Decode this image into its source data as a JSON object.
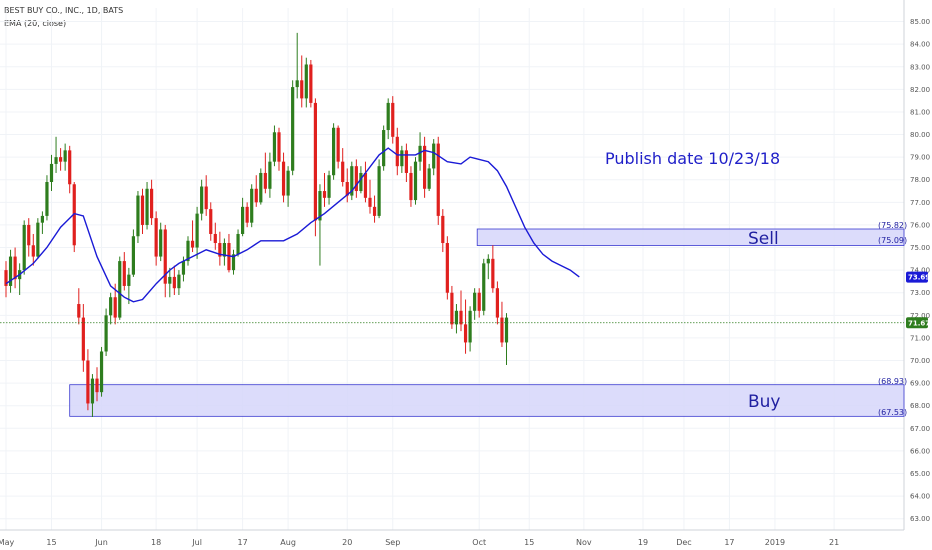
{
  "legend": {
    "symbol": "BEST BUY CO., INC., 1D, BATS",
    "indicator": "EMA (20, close)"
  },
  "annotations": {
    "publish": "Publish date 10/23/18",
    "sell": {
      "label": "Sell",
      "top": "(75.82)",
      "bottom": "(75.09)"
    },
    "buy": {
      "label": "Buy",
      "top": "(68.93)",
      "bottom": "(67.53)"
    },
    "ema_last": "73.69",
    "last_price": "71.67"
  },
  "colors": {
    "up": "#2e7d1e",
    "down": "#e0201e",
    "ema": "#1a1ad6",
    "zone_fill": "#d6d6fa",
    "zone_stroke": "#3a3ad0",
    "last_line": "#2e7d1e",
    "ema_badge": "#1a1ad6",
    "price_badge": "#2e7d1e"
  },
  "chart_data": {
    "type": "candlestick",
    "title": "BEST BUY CO., INC., 1D, BATS",
    "ylim": [
      62.5,
      85.6
    ],
    "y_ticks": [
      "63.00",
      "64.00",
      "65.00",
      "66.00",
      "67.00",
      "68.00",
      "69.00",
      "70.00",
      "71.00",
      "72.00",
      "73.00",
      "74.00",
      "75.00",
      "76.00",
      "77.00",
      "78.00",
      "79.00",
      "80.00",
      "81.00",
      "82.00",
      "83.00",
      "84.00",
      "85.00"
    ],
    "x_ticks": [
      {
        "label": "May",
        "i": 0
      },
      {
        "label": "15",
        "i": 10
      },
      {
        "label": "Jun",
        "i": 21
      },
      {
        "label": "18",
        "i": 33
      },
      {
        "label": "Jul",
        "i": 42
      },
      {
        "label": "17",
        "i": 52
      },
      {
        "label": "Aug",
        "i": 62
      },
      {
        "label": "20",
        "i": 75
      },
      {
        "label": "Sep",
        "i": 85
      },
      {
        "label": "Oct",
        "i": 104
      },
      {
        "label": "15",
        "i": 115
      },
      {
        "label": "Nov",
        "i": 127
      },
      {
        "label": "19",
        "i": 140
      },
      {
        "label": "Dec",
        "i": 149
      },
      {
        "label": "17",
        "i": 159
      },
      {
        "label": "2019",
        "i": 169
      },
      {
        "label": "21",
        "i": 182
      }
    ],
    "n_slots": 189,
    "candles": [
      [
        74.0,
        74.4,
        72.8,
        73.3
      ],
      [
        73.3,
        74.9,
        73.0,
        74.6
      ],
      [
        74.6,
        75.0,
        73.2,
        73.6
      ],
      [
        73.6,
        74.3,
        72.9,
        74.0
      ],
      [
        74.0,
        76.2,
        73.8,
        76.0
      ],
      [
        76.0,
        76.3,
        74.6,
        75.1
      ],
      [
        75.1,
        75.6,
        74.2,
        74.6
      ],
      [
        74.6,
        76.3,
        74.5,
        76.1
      ],
      [
        76.1,
        76.6,
        75.6,
        76.4
      ],
      [
        76.4,
        78.2,
        76.2,
        77.9
      ],
      [
        77.9,
        79.1,
        77.5,
        78.7
      ],
      [
        78.7,
        79.9,
        78.3,
        79.0
      ],
      [
        79.0,
        79.4,
        78.4,
        78.8
      ],
      [
        78.8,
        79.6,
        78.4,
        79.3
      ],
      [
        79.3,
        79.5,
        77.4,
        77.8
      ],
      [
        77.8,
        77.9,
        74.8,
        75.1
      ],
      [
        72.5,
        73.2,
        71.6,
        71.9
      ],
      [
        71.9,
        72.5,
        69.5,
        70.0
      ],
      [
        70.0,
        70.5,
        67.8,
        68.1
      ],
      [
        68.1,
        69.4,
        67.5,
        69.2
      ],
      [
        69.2,
        69.7,
        68.2,
        68.6
      ],
      [
        68.6,
        70.6,
        68.4,
        70.4
      ],
      [
        70.4,
        72.3,
        70.2,
        72.0
      ],
      [
        72.0,
        73.0,
        71.6,
        72.8
      ],
      [
        72.8,
        73.4,
        71.6,
        71.9
      ],
      [
        71.9,
        74.6,
        71.8,
        74.4
      ],
      [
        74.4,
        74.8,
        73.1,
        73.3
      ],
      [
        73.3,
        74.1,
        72.5,
        73.8
      ],
      [
        73.8,
        75.8,
        73.7,
        75.5
      ],
      [
        75.5,
        77.5,
        75.2,
        77.3
      ],
      [
        77.3,
        77.6,
        75.6,
        76.0
      ],
      [
        76.0,
        77.9,
        75.8,
        77.6
      ],
      [
        77.6,
        78.0,
        76.0,
        76.3
      ],
      [
        76.3,
        76.6,
        74.2,
        74.6
      ],
      [
        74.6,
        76.1,
        74.4,
        75.8
      ],
      [
        75.8,
        76.0,
        72.8,
        73.4
      ],
      [
        73.4,
        74.1,
        72.8,
        73.7
      ],
      [
        73.7,
        74.2,
        72.9,
        73.2
      ],
      [
        73.2,
        74.0,
        72.9,
        73.8
      ],
      [
        73.8,
        74.6,
        73.5,
        74.4
      ],
      [
        74.4,
        75.5,
        74.2,
        75.3
      ],
      [
        75.3,
        76.2,
        74.8,
        75.0
      ],
      [
        75.0,
        76.8,
        74.5,
        76.5
      ],
      [
        76.5,
        78.0,
        76.2,
        77.7
      ],
      [
        77.7,
        78.2,
        76.4,
        76.7
      ],
      [
        76.7,
        77.0,
        75.3,
        75.6
      ],
      [
        75.6,
        76.1,
        74.9,
        75.2
      ],
      [
        75.2,
        75.7,
        74.2,
        74.6
      ],
      [
        74.6,
        75.4,
        74.2,
        75.2
      ],
      [
        75.2,
        75.6,
        73.9,
        74.0
      ],
      [
        74.0,
        74.9,
        73.8,
        74.7
      ],
      [
        74.7,
        75.8,
        74.6,
        75.6
      ],
      [
        75.6,
        77.2,
        75.5,
        76.8
      ],
      [
        76.8,
        77.0,
        75.9,
        76.1
      ],
      [
        76.1,
        77.8,
        75.9,
        77.6
      ],
      [
        77.6,
        78.2,
        76.8,
        77.0
      ],
      [
        77.0,
        78.5,
        76.9,
        78.3
      ],
      [
        78.3,
        79.2,
        77.4,
        77.6
      ],
      [
        77.6,
        79.2,
        77.2,
        78.8
      ],
      [
        78.8,
        80.4,
        78.6,
        80.1
      ],
      [
        80.1,
        80.3,
        78.4,
        78.8
      ],
      [
        78.8,
        79.2,
        77.0,
        77.3
      ],
      [
        77.3,
        78.6,
        76.8,
        78.4
      ],
      [
        78.4,
        82.4,
        78.2,
        82.1
      ],
      [
        82.1,
        84.5,
        81.6,
        82.4
      ],
      [
        82.4,
        83.5,
        81.2,
        81.6
      ],
      [
        81.6,
        83.4,
        81.2,
        83.1
      ],
      [
        83.1,
        83.3,
        81.2,
        81.4
      ],
      [
        81.4,
        81.6,
        75.5,
        76.2
      ],
      [
        76.2,
        77.8,
        74.2,
        77.5
      ],
      [
        77.5,
        78.3,
        76.8,
        77.2
      ],
      [
        77.2,
        78.4,
        76.9,
        78.2
      ],
      [
        78.2,
        80.5,
        78.0,
        80.3
      ],
      [
        80.3,
        80.4,
        78.5,
        78.8
      ],
      [
        78.8,
        79.4,
        77.7,
        77.9
      ],
      [
        77.9,
        78.5,
        77.0,
        77.3
      ],
      [
        77.3,
        78.8,
        77.1,
        78.6
      ],
      [
        78.6,
        78.9,
        77.2,
        77.5
      ],
      [
        77.5,
        78.6,
        77.4,
        78.3
      ],
      [
        78.3,
        78.8,
        77.0,
        77.2
      ],
      [
        77.2,
        78.0,
        76.5,
        76.8
      ],
      [
        76.8,
        77.3,
        76.1,
        76.4
      ],
      [
        76.4,
        78.9,
        76.3,
        78.6
      ],
      [
        78.6,
        80.4,
        78.4,
        80.2
      ],
      [
        80.2,
        81.6,
        79.8,
        81.4
      ],
      [
        81.4,
        81.7,
        79.6,
        79.9
      ],
      [
        79.9,
        80.3,
        78.2,
        78.6
      ],
      [
        78.6,
        79.5,
        78.3,
        79.3
      ],
      [
        79.3,
        79.6,
        77.9,
        78.3
      ],
      [
        78.3,
        78.6,
        76.8,
        77.1
      ],
      [
        77.1,
        79.0,
        76.9,
        78.8
      ],
      [
        78.8,
        80.1,
        78.4,
        79.5
      ],
      [
        79.5,
        79.9,
        77.2,
        77.6
      ],
      [
        77.6,
        78.7,
        77.5,
        78.5
      ],
      [
        78.5,
        79.8,
        78.2,
        79.6
      ],
      [
        79.6,
        79.9,
        76.0,
        76.4
      ],
      [
        76.4,
        76.7,
        74.8,
        75.2
      ],
      [
        75.2,
        75.5,
        72.7,
        73.0
      ],
      [
        73.0,
        73.3,
        71.4,
        71.6
      ],
      [
        71.6,
        72.5,
        71.2,
        72.2
      ],
      [
        72.2,
        73.1,
        71.3,
        71.6
      ],
      [
        71.6,
        72.7,
        70.3,
        70.8
      ],
      [
        70.8,
        72.4,
        70.4,
        72.2
      ],
      [
        72.2,
        73.2,
        71.8,
        73.0
      ],
      [
        73.0,
        73.2,
        71.9,
        72.2
      ],
      [
        72.2,
        74.5,
        72.0,
        74.3
      ],
      [
        74.3,
        74.7,
        73.6,
        74.5
      ],
      [
        74.5,
        75.1,
        73.0,
        73.2
      ],
      [
        73.2,
        73.5,
        71.6,
        71.9
      ],
      [
        71.9,
        72.6,
        70.6,
        70.8
      ],
      [
        70.8,
        72.1,
        69.8,
        71.9
      ]
    ],
    "candle_start": 0,
    "ema": [
      [
        0,
        73.4
      ],
      [
        3,
        73.8
      ],
      [
        6,
        74.3
      ],
      [
        9,
        75.0
      ],
      [
        12,
        75.9
      ],
      [
        15,
        76.5
      ],
      [
        17,
        76.4
      ],
      [
        20,
        74.6
      ],
      [
        23,
        73.3
      ],
      [
        26,
        72.8
      ],
      [
        28,
        72.6
      ],
      [
        30,
        72.7
      ],
      [
        33,
        73.4
      ],
      [
        36,
        74.0
      ],
      [
        38,
        74.3
      ],
      [
        41,
        74.6
      ],
      [
        44,
        74.9
      ],
      [
        47,
        74.7
      ],
      [
        50,
        74.6
      ],
      [
        53,
        74.9
      ],
      [
        56,
        75.3
      ],
      [
        58,
        75.3
      ],
      [
        61,
        75.3
      ],
      [
        64,
        75.6
      ],
      [
        67,
        76.1
      ],
      [
        70,
        76.5
      ],
      [
        73,
        77.0
      ],
      [
        76,
        77.5
      ],
      [
        79,
        78.3
      ],
      [
        82,
        79.1
      ],
      [
        84,
        79.4
      ],
      [
        86,
        79.1
      ],
      [
        88,
        79.1
      ],
      [
        90,
        79.1
      ],
      [
        92,
        79.3
      ],
      [
        94,
        79.2
      ],
      [
        97,
        78.8
      ],
      [
        100,
        78.7
      ],
      [
        102,
        79.0
      ],
      [
        104,
        78.9
      ],
      [
        106,
        78.8
      ],
      [
        108,
        78.4
      ],
      [
        110,
        77.7
      ],
      [
        112,
        76.8
      ],
      [
        114,
        75.9
      ],
      [
        116,
        75.2
      ],
      [
        118,
        74.7
      ],
      [
        120,
        74.4
      ],
      [
        122,
        74.2
      ],
      [
        124,
        74.0
      ],
      [
        126,
        73.7
      ]
    ],
    "sell_zone": [
      75.09,
      75.82
    ],
    "buy_zone": [
      67.53,
      68.93
    ],
    "last_price": 71.67,
    "ema_last": 73.69
  }
}
